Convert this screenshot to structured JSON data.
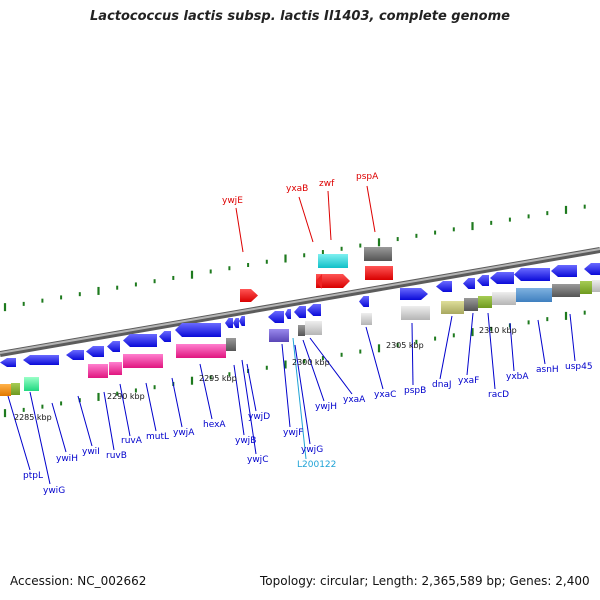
{
  "title": "Lactococcus lactis subsp. lactis Il1403, complete genome",
  "footer": {
    "accession": "Accession: NC_002662",
    "summary": "Topology: circular; Length: 2,365,589 bp; Genes: 2,400"
  },
  "scale_labels": [
    "2285 kbp",
    "2290 kbp",
    "2295 kbp",
    "2300 kbp",
    "2305 kbp",
    "2310 kbp"
  ],
  "gene_labels_above": [
    "ywjE",
    "yxaB",
    "zwf",
    "pspA"
  ],
  "gene_labels_below": [
    "ptpL",
    "ywiG",
    "ywiH",
    "ywiI",
    "ruvB",
    "ruvA",
    "mutL",
    "ywjA",
    "hexA",
    "ywjB",
    "ywjC",
    "ywjD",
    "ywjF",
    "ywjG",
    "L200122",
    "ywjH",
    "yxaA",
    "yxaC",
    "pspB",
    "dnaJ",
    "yxaF",
    "racD",
    "yxbA",
    "asnH",
    "usp45"
  ],
  "colors": {
    "backbone": "#8a8a8a",
    "tick": "#1e7a1e",
    "gene_default": "#1010ee",
    "label_red": "#dd0000",
    "label_blue": "#0000cc",
    "label_cyan": "#1fa3d6"
  }
}
